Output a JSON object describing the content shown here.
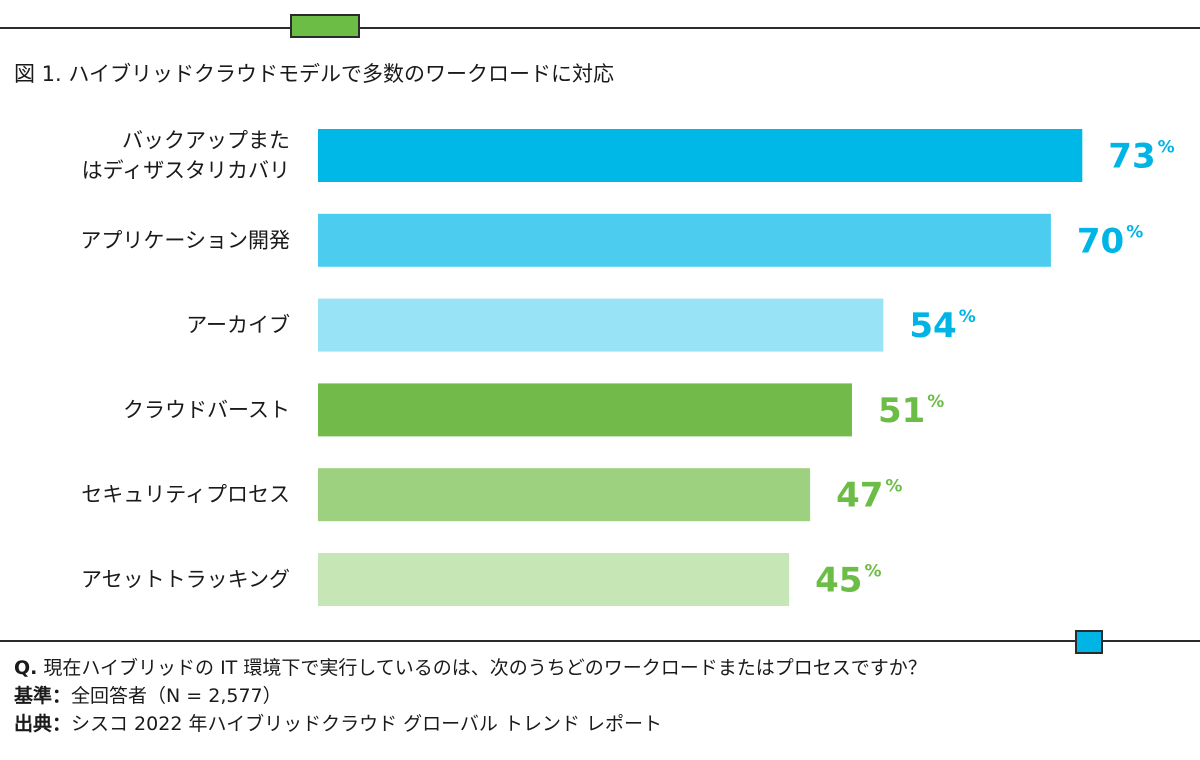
{
  "title": "図 1. ハイブリッドクラウドモデルで多数のワークロードに対応",
  "chart_data": {
    "type": "bar",
    "orientation": "horizontal",
    "categories": [
      [
        "バックアップまた",
        "はディザスタリカバリ"
      ],
      [
        "アプリケーション開発"
      ],
      [
        "アーカイブ"
      ],
      [
        "クラウドバースト"
      ],
      [
        "セキュリティプロセス"
      ],
      [
        "アセットトラッキング"
      ]
    ],
    "values": [
      73,
      70,
      54,
      51,
      47,
      45
    ],
    "value_suffix": "%",
    "xlim": [
      0,
      100
    ],
    "grid": false,
    "bar_colors": [
      "#00b8e8",
      "#4ccdf0",
      "#99e3f7",
      "#72bb4a",
      "#9dd07f",
      "#c7e6b6"
    ],
    "label_colors": [
      "#00b4e6",
      "#00b4e6",
      "#00b4e6",
      "#6cbd45",
      "#6cbd45",
      "#6cbd45"
    ]
  },
  "notes": {
    "question_label": "Q.",
    "question": " 現在ハイブリッドの IT 環境下で実行しているのは、次のうちどのワークロードまたはプロセスですか？",
    "base_label": "基準：",
    "base": "全回答者（N = 2,577）",
    "source_label": "出典：",
    "source": "シスコ 2022 年ハイブリッドクラウド グローバル トレンド レポート"
  }
}
